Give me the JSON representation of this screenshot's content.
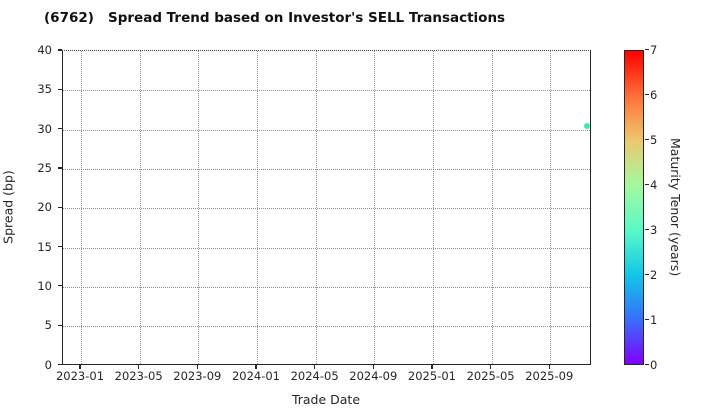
{
  "chart_data": {
    "type": "scatter",
    "title": "(6762)   Spread Trend based on Investor's SELL Transactions",
    "xlabel": "Trade Date",
    "ylabel": "Spread (bp)",
    "ylim": [
      0,
      40
    ],
    "yticks": [
      0,
      5,
      10,
      15,
      20,
      25,
      30,
      35,
      40
    ],
    "xticks": [
      "2023-01",
      "2023-05",
      "2023-09",
      "2024-01",
      "2024-05",
      "2024-09",
      "2025-01",
      "2025-05",
      "2025-09"
    ],
    "grid": "dotted, both axes",
    "legend": "none",
    "points": [
      {
        "trade_date": "2025-11-17",
        "spread_bp": 30.5,
        "maturity_years": 3.0,
        "color": "#3CE9AC"
      }
    ],
    "colorbar": {
      "label": "Maturity Tenor (years)",
      "min": 0,
      "max": 7,
      "ticks": [
        0,
        1,
        2,
        3,
        4,
        5,
        6,
        7
      ],
      "colormap": "rainbow",
      "stops": [
        {
          "v": 0,
          "c": "#8000FF"
        },
        {
          "v": 1,
          "c": "#376FF9"
        },
        {
          "v": 2,
          "c": "#12C7E6"
        },
        {
          "v": 3,
          "c": "#5BF9C7"
        },
        {
          "v": 4,
          "c": "#A4F99F"
        },
        {
          "v": 5,
          "c": "#EDC76F"
        },
        {
          "v": 6,
          "c": "#FF6F39"
        },
        {
          "v": 7,
          "c": "#FF0000"
        }
      ]
    }
  }
}
